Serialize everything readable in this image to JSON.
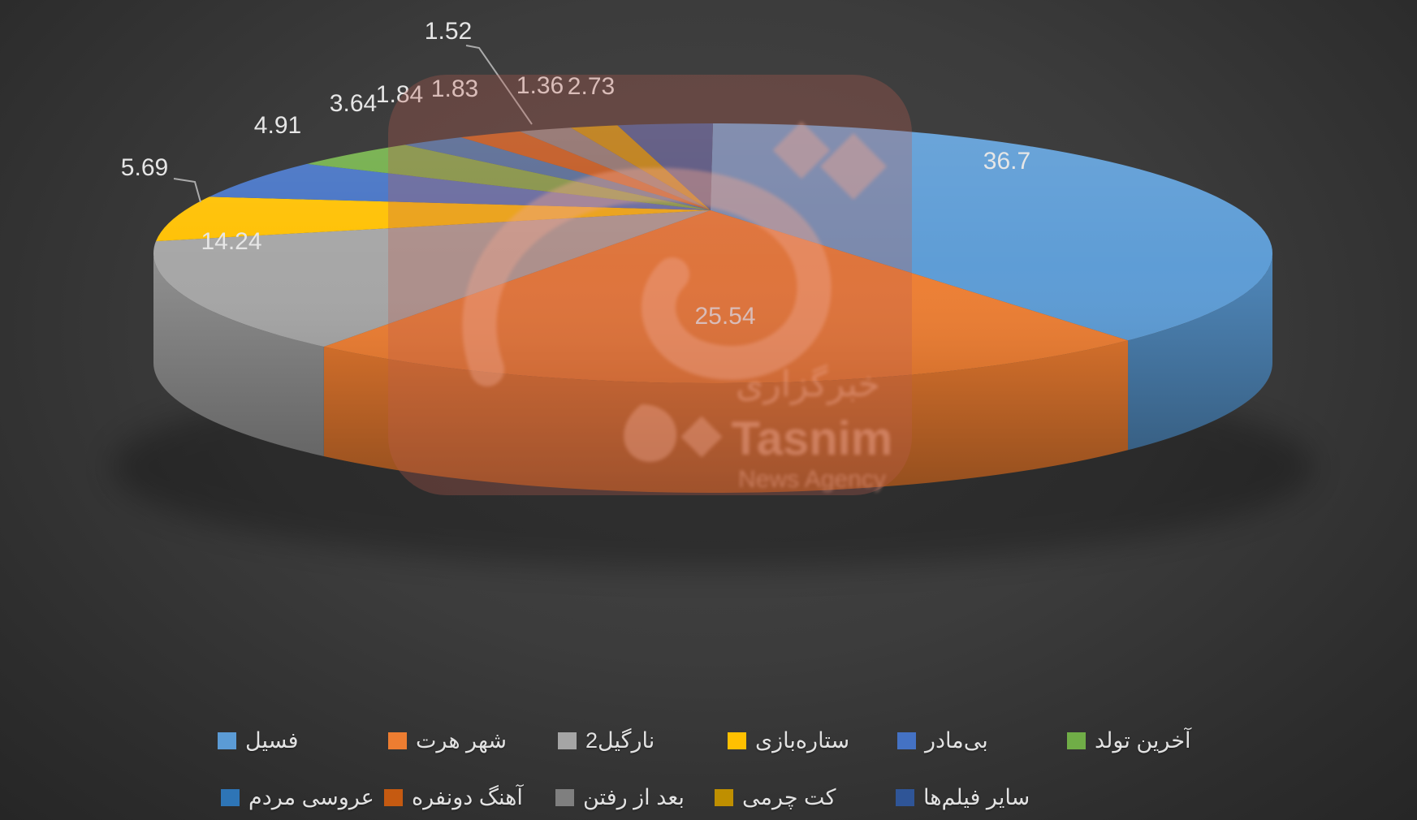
{
  "chart_data": {
    "type": "pie",
    "style": "3d",
    "title": "",
    "labels": [
      "فسیل",
      "شهر هرت",
      "نارگیل2",
      "ستاره‌بازی",
      "بی‌مادر",
      "آخرین تولد",
      "عروسی مردم",
      "آهنگ دونفره",
      "بعد از رفتن",
      "کت چرمی",
      "سایر فیلم‌ها"
    ],
    "values": [
      36.7,
      25.54,
      14.24,
      5.69,
      4.91,
      3.64,
      1.84,
      1.83,
      1.52,
      1.36,
      2.73
    ],
    "value_labels": [
      "36.7",
      "25.54",
      "14.24",
      "5.69",
      "4.91",
      "3.64",
      "1.84",
      "1.83",
      "1.52",
      "1.36",
      "2.73"
    ],
    "colors": [
      "#5B9BD5",
      "#ED7D31",
      "#A5A5A5",
      "#FFC000",
      "#4472C4",
      "#70AD47",
      "#2E75B6",
      "#C55A11",
      "#7F7F7F",
      "#BF8F00",
      "#2F5597"
    ],
    "total": 100.0,
    "start_angle_deg": 0,
    "direction": "clockwise",
    "legend_position": "bottom",
    "grid": false
  },
  "legend": {
    "rows": [
      {
        "indices": [
          0,
          1,
          2,
          3,
          4,
          5
        ]
      },
      {
        "indices": [
          6,
          7,
          8,
          9,
          10
        ]
      }
    ]
  },
  "watermark": {
    "line1": "خبرگزاری",
    "line2": "Tasnim",
    "line3": "News Agency"
  }
}
